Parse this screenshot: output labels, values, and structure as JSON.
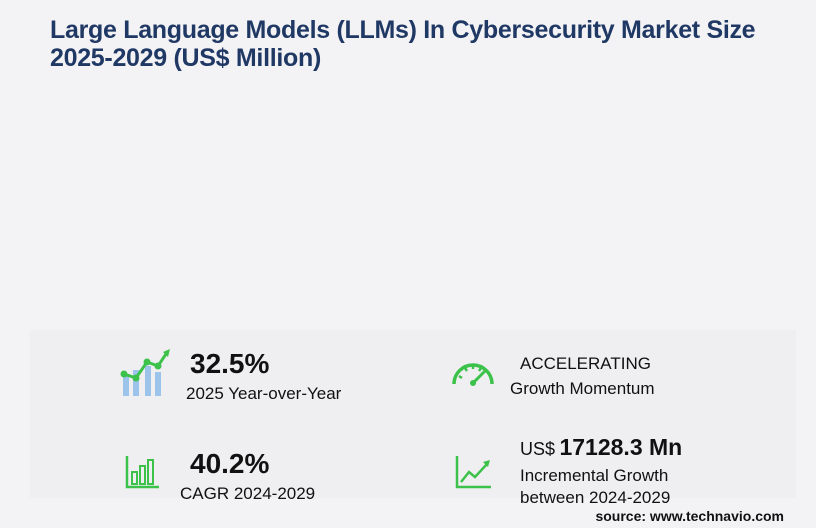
{
  "title": "Large Language Models (LLMs) In Cybersecurity Market Size 2025-2029 (US$ Million)",
  "chart_data": {
    "type": "bar",
    "title": "Large Language Models (LLMs) In Cybersecurity Market Size 2025-2029 (US$ Million)",
    "categories": [],
    "values": []
  },
  "stats": {
    "yoy_value": "32.5%",
    "yoy_label": "2025 Year-over-Year",
    "momentum_value": "ACCELERATING",
    "momentum_label": "Growth Momentum",
    "cagr_value": "40.2%",
    "cagr_label": "CAGR 2024-2029",
    "incr_prefix": "US$",
    "incr_value": "17128.3 Mn",
    "incr_label_1": "Incremental Growth",
    "incr_label_2": "between 2024-2029"
  },
  "colors": {
    "title": "#1f3864",
    "icon_green": "#3cc24a",
    "icon_blue": "#9cc3ea"
  },
  "icons": [
    "growth-chart-icon",
    "speedometer-icon",
    "bar-chart-icon",
    "trend-line-icon"
  ],
  "source": "source: www.technavio.com"
}
